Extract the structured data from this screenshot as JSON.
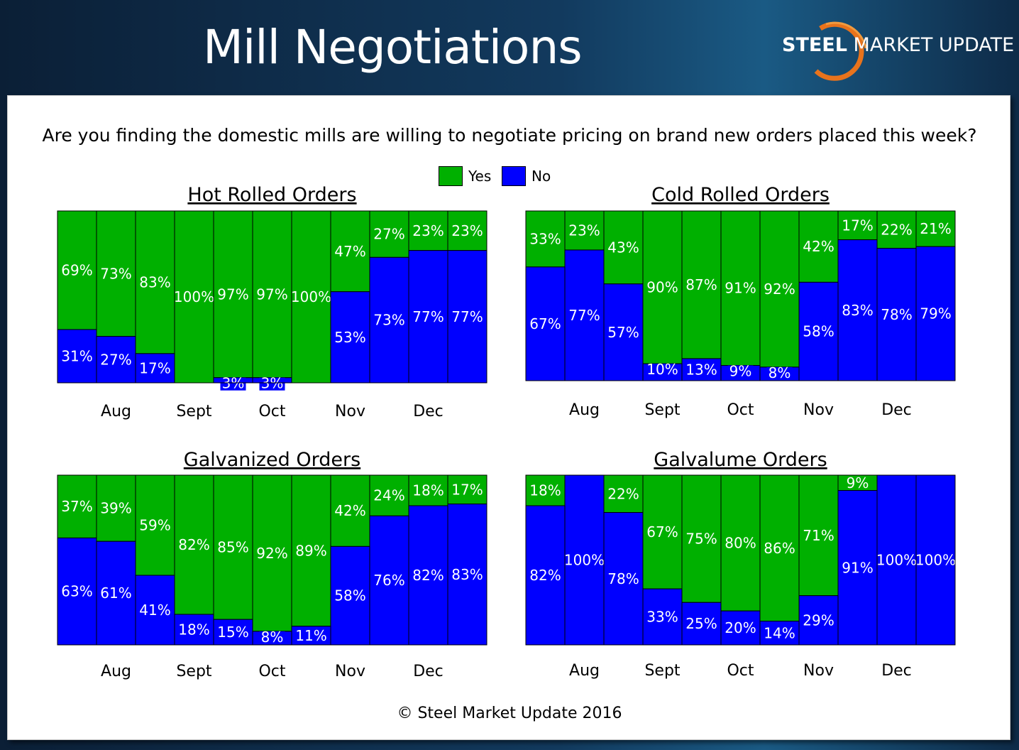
{
  "header": {
    "title": "Mill Negotiations",
    "logo_bold": "STEEL",
    "logo_rest": " MARKET UPDATE"
  },
  "question": "Are you finding the domestic mills are willing to negotiate pricing on brand new orders placed this week?",
  "legend": {
    "yes_label": "Yes",
    "no_label": "No"
  },
  "colors": {
    "yes": "#00b000",
    "no": "#0000ff",
    "accent": "#e8731c"
  },
  "footer": "© Steel Market Update 2016",
  "chart_data": [
    {
      "type": "bar",
      "stacked": true,
      "title": "Hot Rolled Orders",
      "month_labels": [
        "Aug",
        "Sept",
        "Oct",
        "Nov",
        "Dec"
      ],
      "series": [
        {
          "name": "Yes",
          "values": [
            69,
            73,
            83,
            100,
            97,
            97,
            100,
            47,
            27,
            23,
            23
          ]
        },
        {
          "name": "No",
          "values": [
            31,
            27,
            17,
            0,
            3,
            3,
            0,
            53,
            73,
            77,
            77
          ]
        }
      ],
      "ylim": [
        0,
        100
      ]
    },
    {
      "type": "bar",
      "stacked": true,
      "title": "Cold Rolled Orders",
      "month_labels": [
        "Aug",
        "Sept",
        "Oct",
        "Nov",
        "Dec"
      ],
      "series": [
        {
          "name": "Yes",
          "values": [
            33,
            23,
            43,
            90,
            87,
            91,
            92,
            42,
            17,
            22,
            21
          ]
        },
        {
          "name": "No",
          "values": [
            67,
            77,
            57,
            10,
            13,
            9,
            8,
            58,
            83,
            78,
            79
          ]
        }
      ],
      "ylim": [
        0,
        100
      ]
    },
    {
      "type": "bar",
      "stacked": true,
      "title": "Galvanized Orders",
      "month_labels": [
        "Aug",
        "Sept",
        "Oct",
        "Nov",
        "Dec"
      ],
      "series": [
        {
          "name": "Yes",
          "values": [
            37,
            39,
            59,
            82,
            85,
            92,
            89,
            42,
            24,
            18,
            17
          ]
        },
        {
          "name": "No",
          "values": [
            63,
            61,
            41,
            18,
            15,
            8,
            11,
            58,
            76,
            82,
            83
          ]
        }
      ],
      "ylim": [
        0,
        100
      ]
    },
    {
      "type": "bar",
      "stacked": true,
      "title": "Galvalume Orders",
      "month_labels": [
        "Aug",
        "Sept",
        "Oct",
        "Nov",
        "Dec"
      ],
      "series": [
        {
          "name": "Yes",
          "values": [
            18,
            0,
            22,
            67,
            75,
            80,
            86,
            71,
            9,
            0,
            0
          ]
        },
        {
          "name": "No",
          "values": [
            82,
            100,
            78,
            33,
            25,
            20,
            14,
            29,
            91,
            100,
            100
          ]
        }
      ],
      "ylim": [
        0,
        100
      ]
    }
  ]
}
